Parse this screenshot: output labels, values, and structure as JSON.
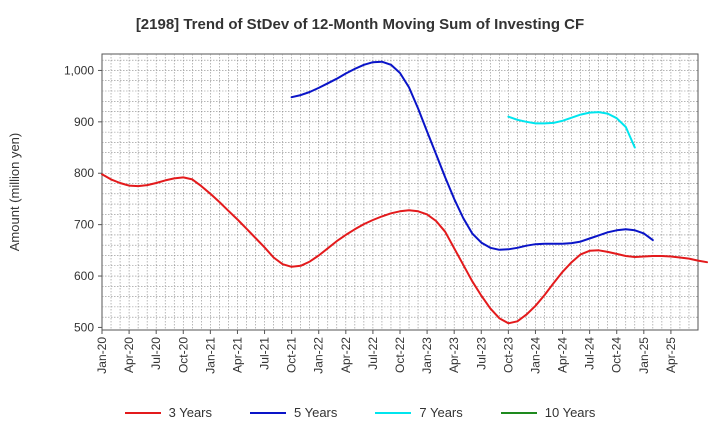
{
  "chart_data": {
    "type": "line",
    "title": "[2198]  Trend of StDev of 12-Month Moving Sum of Investing CF",
    "ylabel": "Amount (million yen)",
    "xlabel": "",
    "ylim": [
      495,
      1032
    ],
    "y_ticks": [
      500,
      600,
      700,
      800,
      900,
      1000
    ],
    "y_tick_labels": [
      "500",
      "600",
      "700",
      "800",
      "900",
      "1,000"
    ],
    "x_tick_labels": [
      "Jan-20",
      "Apr-20",
      "Jul-20",
      "Oct-20",
      "Jan-21",
      "Apr-21",
      "Jul-21",
      "Oct-21",
      "Jan-22",
      "Apr-22",
      "Jul-22",
      "Oct-22",
      "Jan-23",
      "Apr-23",
      "Jul-23",
      "Oct-23",
      "Jan-24",
      "Apr-24",
      "Jul-24",
      "Oct-24",
      "Jan-25",
      "Apr-25"
    ],
    "grid": true,
    "legend_position": "bottom",
    "series": [
      {
        "name": "3 Years",
        "color": "#e31a1c",
        "values": [
          798,
          788,
          781,
          776,
          775,
          777,
          781,
          786,
          790,
          792,
          788,
          775,
          760,
          744,
          727,
          710,
          692,
          674,
          656,
          636,
          623,
          618,
          620,
          628,
          640,
          654,
          668,
          680,
          691,
          701,
          709,
          716,
          722,
          726,
          728,
          726,
          720,
          707,
          686,
          654,
          622,
          590,
          562,
          537,
          518,
          508,
          512,
          525,
          542,
          563,
          586,
          608,
          627,
          642,
          649,
          650,
          647,
          643,
          639,
          637,
          638,
          639,
          639,
          638,
          636,
          634,
          630,
          627
        ],
        "start_index": 0
      },
      {
        "name": "5 Years",
        "color": "#0a14c8",
        "values": [
          948,
          952,
          958,
          966,
          975,
          984,
          994,
          1003,
          1011,
          1016,
          1017,
          1011,
          995,
          967,
          926,
          881,
          837,
          792,
          750,
          713,
          683,
          665,
          655,
          651,
          652,
          655,
          659,
          662,
          663,
          663,
          663,
          664,
          667,
          673,
          679,
          685,
          689,
          691,
          689,
          683,
          670
        ],
        "start_index": 21
      },
      {
        "name": "7 Years",
        "color": "#00e5ee",
        "values": [
          910,
          904,
          900,
          897,
          897,
          898,
          902,
          908,
          914,
          918,
          919,
          916,
          907,
          890,
          850
        ],
        "start_index": 45
      },
      {
        "name": "10 Years",
        "color": "#1e8a1e",
        "values": [],
        "start_index": 0
      }
    ]
  }
}
